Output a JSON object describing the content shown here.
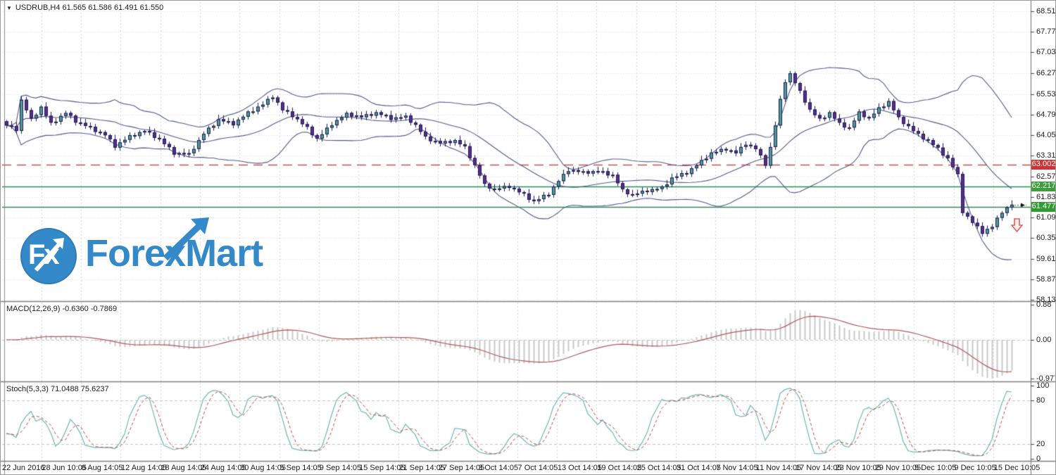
{
  "window": {
    "symbol_dropdown_icon": "▼",
    "title_line": "USDRUB,H4 61.565 61.586 61.491 61.550"
  },
  "watermark": {
    "circle_text": "Fx",
    "brand_left": "Forex",
    "brand_right": "Mart",
    "brand_color": "#2e86c8"
  },
  "panes": {
    "macd_label": "MACD(12,26,9) -0.6360 -0.7869",
    "stoch_label": "Stoch(5,3,3) 71.0488 75.6237"
  },
  "price_markers": {
    "resistance": {
      "value": "63.002"
    },
    "upper_level": {
      "value": "62.217"
    },
    "bid": {
      "value": "61.477"
    }
  },
  "colors": {
    "bull": "#4e9c9a",
    "bear": "#5b2c8f",
    "candle_outline": "#1c1c4e",
    "band_line": "#565b8c",
    "red_dashed_line": "#c4514d",
    "green_line": "#2e8b57",
    "grid": "#dcdcdc",
    "grid_dash": "#d6d6d6",
    "macd_hist": "#c9c9c9",
    "macd_signal": "#b05a5a",
    "stoch_k": "#6ab8b4",
    "stoch_d": "#c34a4a",
    "badge_red": "#cf3434",
    "badge_green_upper": "#3a9e3a",
    "badge_green_bid": "#2f9a2f",
    "sell_arrow": "#e06060",
    "frame": "#8a8a8a"
  },
  "chart_data": [
    {
      "type": "candlestick",
      "title": "USDRUB,H4",
      "symbol": "USDRUB",
      "timeframe": "H4",
      "last_bar": {
        "open": 61.565,
        "high": 61.586,
        "low": 61.491,
        "close": 61.55
      },
      "candles": 205,
      "close_keypoints": [
        [
          0,
          64.4
        ],
        [
          2,
          64.25
        ],
        [
          3,
          65.3
        ],
        [
          5,
          64.6
        ],
        [
          7,
          65.05
        ],
        [
          9,
          64.45
        ],
        [
          12,
          64.85
        ],
        [
          14,
          64.55
        ],
        [
          17,
          64.3
        ],
        [
          20,
          64.05
        ],
        [
          22,
          63.65
        ],
        [
          25,
          64.0
        ],
        [
          28,
          64.2
        ],
        [
          31,
          63.9
        ],
        [
          34,
          63.4
        ],
        [
          37,
          63.35
        ],
        [
          40,
          64.1
        ],
        [
          43,
          64.6
        ],
        [
          46,
          64.45
        ],
        [
          49,
          64.85
        ],
        [
          52,
          65.15
        ],
        [
          54,
          65.45
        ],
        [
          56,
          64.95
        ],
        [
          58,
          64.75
        ],
        [
          61,
          64.3
        ],
        [
          63,
          63.9
        ],
        [
          66,
          64.45
        ],
        [
          69,
          64.8
        ],
        [
          72,
          64.7
        ],
        [
          75,
          64.85
        ],
        [
          78,
          64.65
        ],
        [
          81,
          64.7
        ],
        [
          83,
          64.4
        ],
        [
          85,
          63.95
        ],
        [
          88,
          63.75
        ],
        [
          91,
          63.85
        ],
        [
          93,
          63.6
        ],
        [
          95,
          62.95
        ],
        [
          97,
          62.25
        ],
        [
          99,
          62.1
        ],
        [
          102,
          62.2
        ],
        [
          105,
          61.9
        ],
        [
          107,
          61.65
        ],
        [
          110,
          61.95
        ],
        [
          112,
          62.4
        ],
        [
          114,
          62.8
        ],
        [
          117,
          62.7
        ],
        [
          120,
          62.75
        ],
        [
          123,
          62.6
        ],
        [
          125,
          62.05
        ],
        [
          127,
          61.9
        ],
        [
          130,
          62.05
        ],
        [
          133,
          62.15
        ],
        [
          135,
          62.5
        ],
        [
          138,
          62.7
        ],
        [
          141,
          63.1
        ],
        [
          143,
          63.4
        ],
        [
          146,
          63.55
        ],
        [
          148,
          63.4
        ],
        [
          150,
          63.75
        ],
        [
          152,
          63.55
        ],
        [
          154,
          63.0
        ],
        [
          155,
          63.6
        ],
        [
          156,
          64.4
        ],
        [
          157,
          65.3
        ],
        [
          158,
          66.0
        ],
        [
          159,
          66.25
        ],
        [
          161,
          65.6
        ],
        [
          163,
          64.95
        ],
        [
          165,
          64.6
        ],
        [
          167,
          64.85
        ],
        [
          169,
          64.45
        ],
        [
          171,
          64.3
        ],
        [
          173,
          64.85
        ],
        [
          175,
          64.65
        ],
        [
          177,
          65.0
        ],
        [
          179,
          65.25
        ],
        [
          181,
          64.65
        ],
        [
          183,
          64.35
        ],
        [
          185,
          64.05
        ],
        [
          187,
          63.85
        ],
        [
          189,
          63.55
        ],
        [
          191,
          63.2
        ],
        [
          193,
          62.6
        ],
        [
          194,
          61.3
        ],
        [
          196,
          60.9
        ],
        [
          198,
          60.55
        ],
        [
          200,
          60.75
        ],
        [
          202,
          61.3
        ],
        [
          204,
          61.55
        ]
      ],
      "y_ticks": [
        "68.510",
        "67.770",
        "67.030",
        "66.270",
        "65.530",
        "64.790",
        "64.050",
        "63.310",
        "62.570",
        "61.830",
        "61.090",
        "60.350",
        "59.610",
        "58.870",
        "58.130"
      ],
      "ylim": [
        58.08,
        68.84
      ],
      "x_ticks": [
        "22 Jun 2016",
        "28 Jun 10:05",
        "8 Aug 14:05",
        "12 Aug 14:05",
        "18 Aug 14:05",
        "24 Aug 14:05",
        "30 Aug 14:05",
        "5 Sep 14:05",
        "9 Sep 14:05",
        "15 Sep 14:05",
        "21 Sep 14:05",
        "27 Sep 14:05",
        "3 Oct 14:05",
        "7 Oct 14:05",
        "13 Oct 14:05",
        "19 Oct 14:05",
        "25 Oct 14:05",
        "31 Oct 14:05",
        "7 Nov 14:05",
        "11 Nov 14:05",
        "17 Nov 14:05",
        "23 Nov 10:05",
        "29 Nov 10:05",
        "5 Dec 10:05",
        "9 Dec 10:05",
        "15 Dec 10:05"
      ],
      "grid": true,
      "overlays": [
        {
          "name": "Bollinger Bands",
          "period": 20,
          "deviation": 2
        }
      ],
      "levels": [
        {
          "value": 63.002,
          "style": "dashed",
          "color_key": "red_dashed_line"
        },
        {
          "value": 62.217,
          "style": "solid",
          "color_key": "green_line"
        },
        {
          "value": 61.477,
          "style": "solid",
          "color_key": "green_line",
          "current_bid": true
        }
      ],
      "annotations": [
        {
          "type": "sell-arrow",
          "x_index": 205,
          "price": 60.84
        }
      ]
    },
    {
      "type": "bar",
      "name": "MACD",
      "params": {
        "fast": 12,
        "slow": 26,
        "signal": 9
      },
      "current": {
        "macd": -0.636,
        "signal": -0.7869
      },
      "y_ticks": [
        {
          "v": 0.88,
          "label": "0.88"
        },
        {
          "v": 0.0,
          "label": "0.00"
        },
        {
          "v": -0.9773,
          "label": "-0.9773"
        }
      ],
      "ylim": [
        -0.9773,
        0.88
      ],
      "derived_from": "candlestick closes, EMA12-EMA26 histogram with EMA9 signal line"
    },
    {
      "type": "line",
      "name": "Stochastic",
      "params": {
        "k": 5,
        "d": 3,
        "slowing": 3
      },
      "current": {
        "k": 71.0488,
        "d": 75.6237
      },
      "y_ticks": [
        {
          "v": 100,
          "label": "100"
        },
        {
          "v": 80,
          "label": "80"
        },
        {
          "v": 20,
          "label": "20"
        },
        {
          "v": 0,
          "label": "0"
        }
      ],
      "levels": [
        80,
        20
      ],
      "ylim": [
        0,
        100
      ],
      "derived_from": "candlestick highs/lows/closes"
    }
  ]
}
